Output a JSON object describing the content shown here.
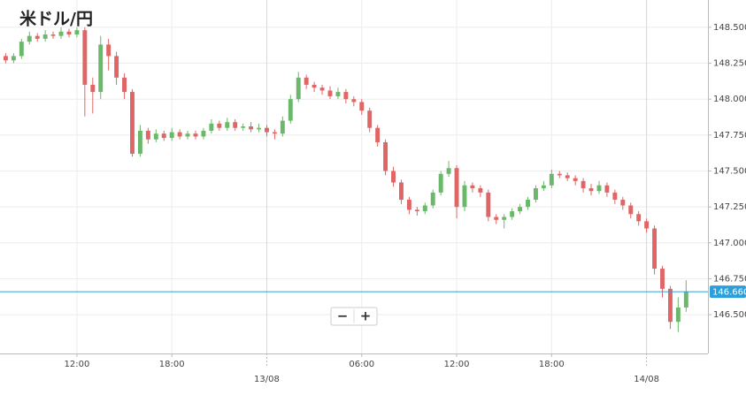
{
  "chart_data": {
    "type": "candlestick",
    "title": "米ドル/円",
    "x": [
      7.5,
      8,
      8.5,
      9,
      9.5,
      10,
      10.5,
      11,
      11.5,
      12,
      12.5,
      13,
      13.5,
      14,
      14.5,
      15,
      15.5,
      16,
      16.5,
      17,
      17.5,
      18,
      18.5,
      19,
      19.5,
      20,
      20.5,
      21,
      21.5,
      22,
      22.5,
      23,
      23.5,
      24,
      24.5,
      25,
      25.5,
      26,
      26.5,
      27,
      27.5,
      28,
      28.5,
      29,
      29.5,
      30,
      30.5,
      31,
      31.5,
      32,
      32.5,
      33,
      33.5,
      34,
      34.5,
      35,
      35.5,
      36,
      36.5,
      37,
      37.5,
      38,
      38.5,
      39,
      39.5,
      40,
      40.5,
      41,
      41.5,
      42,
      42.5,
      43,
      43.5,
      44,
      44.5,
      45,
      45.5,
      46,
      46.5,
      47,
      47.5,
      48,
      48.5,
      49,
      49.5,
      50,
      50.5
    ],
    "open": [
      148.3,
      148.27,
      148.3,
      148.4,
      148.44,
      148.42,
      148.45,
      148.44,
      148.47,
      148.45,
      148.48,
      148.1,
      148.05,
      148.38,
      148.3,
      148.15,
      148.05,
      147.62,
      147.78,
      147.72,
      147.76,
      147.73,
      147.77,
      147.74,
      147.76,
      147.74,
      147.78,
      147.83,
      147.8,
      147.84,
      147.8,
      147.81,
      147.79,
      147.8,
      147.77,
      147.76,
      147.85,
      148.0,
      148.15,
      148.1,
      148.08,
      148.06,
      148.02,
      148.05,
      148.0,
      147.98,
      147.92,
      147.8,
      147.7,
      147.5,
      147.42,
      147.3,
      147.23,
      147.22,
      147.26,
      147.35,
      147.48,
      147.52,
      147.25,
      147.4,
      147.38,
      147.35,
      147.18,
      147.16,
      147.18,
      147.22,
      147.25,
      147.3,
      147.38,
      147.4,
      147.48,
      147.47,
      147.45,
      147.43,
      147.38,
      147.36,
      147.4,
      147.35,
      147.3,
      147.26,
      147.2,
      147.15,
      147.1,
      146.82,
      146.68,
      146.45,
      146.55
    ],
    "high": [
      148.32,
      148.32,
      148.42,
      148.47,
      148.46,
      148.48,
      148.47,
      148.5,
      148.49,
      148.5,
      148.5,
      148.15,
      148.44,
      148.42,
      148.33,
      148.18,
      148.07,
      147.82,
      147.8,
      147.79,
      147.78,
      147.8,
      147.79,
      147.78,
      147.78,
      147.8,
      147.86,
      147.85,
      147.87,
      147.86,
      147.83,
      147.84,
      147.83,
      147.82,
      147.79,
      147.88,
      148.03,
      148.19,
      148.17,
      148.12,
      148.1,
      148.09,
      148.08,
      148.07,
      148.02,
      148.0,
      147.94,
      147.82,
      147.72,
      147.53,
      147.44,
      147.32,
      147.25,
      147.28,
      147.37,
      147.5,
      147.57,
      147.54,
      147.43,
      147.42,
      147.4,
      147.37,
      147.2,
      147.2,
      147.24,
      147.27,
      147.32,
      147.4,
      147.43,
      147.51,
      147.5,
      147.49,
      147.47,
      147.45,
      147.41,
      147.43,
      147.42,
      147.37,
      147.32,
      147.28,
      147.22,
      147.17,
      147.12,
      146.84,
      146.7,
      146.62,
      146.74
    ],
    "low": [
      148.25,
      148.25,
      148.28,
      148.38,
      148.4,
      148.4,
      148.42,
      148.42,
      148.43,
      148.43,
      147.88,
      147.9,
      148.0,
      148.2,
      148.1,
      148.0,
      147.6,
      147.6,
      147.69,
      147.7,
      147.71,
      147.71,
      147.72,
      147.72,
      147.72,
      147.72,
      147.76,
      147.78,
      147.78,
      147.78,
      147.78,
      147.77,
      147.77,
      147.74,
      147.72,
      147.74,
      147.83,
      147.98,
      148.07,
      148.05,
      148.03,
      148.0,
      148.0,
      147.97,
      147.95,
      147.89,
      147.77,
      147.67,
      147.47,
      147.39,
      147.27,
      147.2,
      147.19,
      147.2,
      147.24,
      147.33,
      147.46,
      147.17,
      147.22,
      147.35,
      147.32,
      147.15,
      147.13,
      147.1,
      147.16,
      147.2,
      147.23,
      147.28,
      147.36,
      147.38,
      147.45,
      147.43,
      147.4,
      147.35,
      147.33,
      147.34,
      147.32,
      147.27,
      147.23,
      147.17,
      147.12,
      147.07,
      146.78,
      146.62,
      146.4,
      146.38,
      146.52
    ],
    "close": [
      148.27,
      148.3,
      148.4,
      148.44,
      148.42,
      148.45,
      148.44,
      148.47,
      148.45,
      148.48,
      148.1,
      148.05,
      148.38,
      148.3,
      148.15,
      148.05,
      147.62,
      147.78,
      147.72,
      147.76,
      147.73,
      147.77,
      147.74,
      147.76,
      147.74,
      147.78,
      147.83,
      147.8,
      147.84,
      147.8,
      147.81,
      147.79,
      147.8,
      147.77,
      147.76,
      147.85,
      148.0,
      148.15,
      148.1,
      148.08,
      148.06,
      148.02,
      148.05,
      148.0,
      147.98,
      147.92,
      147.8,
      147.7,
      147.5,
      147.42,
      147.3,
      147.23,
      147.22,
      147.26,
      147.35,
      147.48,
      147.52,
      147.25,
      147.4,
      147.38,
      147.35,
      147.18,
      147.16,
      147.18,
      147.22,
      147.25,
      147.3,
      147.38,
      147.4,
      147.48,
      147.47,
      147.45,
      147.43,
      147.38,
      147.36,
      147.4,
      147.35,
      147.3,
      147.26,
      147.2,
      147.15,
      147.1,
      146.82,
      146.68,
      146.45,
      146.55,
      146.66
    ],
    "up_color": "#6ab86a",
    "down_color": "#e06666",
    "xlim": [
      7.14,
      51.88
    ],
    "xticks": [
      {
        "value": 12,
        "label": "12:00"
      },
      {
        "value": 18,
        "label": "18:00"
      },
      {
        "value": 24,
        "label": "13/08"
      },
      {
        "value": 30,
        "label": "06:00"
      },
      {
        "value": 36,
        "label": "12:00"
      },
      {
        "value": 42,
        "label": "18:00"
      },
      {
        "value": 48,
        "label": "14/08"
      }
    ],
    "ylim": [
      146.23,
      148.69
    ],
    "yticks": [
      {
        "value": 146.5,
        "label": "146.500"
      },
      {
        "value": 146.75,
        "label": "146.750"
      },
      {
        "value": 147,
        "label": "147.000"
      },
      {
        "value": 147.25,
        "label": "147.250"
      },
      {
        "value": 147.5,
        "label": "147.500"
      },
      {
        "value": 147.75,
        "label": "147.750"
      },
      {
        "value": 148,
        "label": "148.000"
      },
      {
        "value": 148.25,
        "label": "148.250"
      },
      {
        "value": 148.5,
        "label": "148.500"
      }
    ],
    "grid": true,
    "current_price": 146.66,
    "current_price_label": "146.660",
    "current_price_color": "#2b9fdc",
    "zoom_out": "−",
    "zoom_in": "+"
  }
}
